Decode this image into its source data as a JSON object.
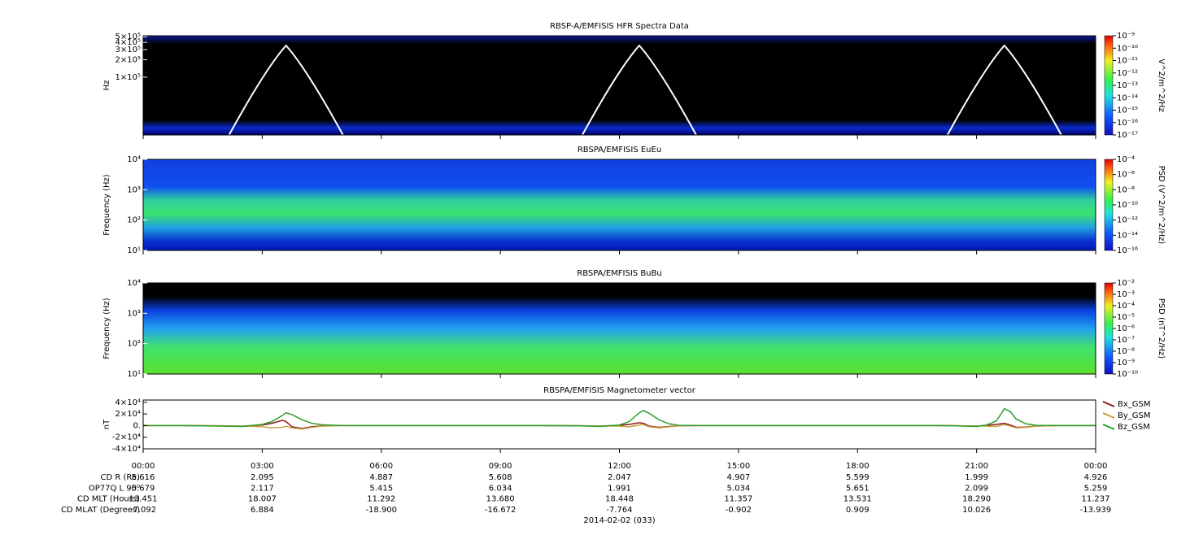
{
  "chart_data": [
    {
      "type": "spectrogram",
      "title": "RBSP-A/EMFISIS  HFR Spectra Data",
      "ylabel": "Hz",
      "ylog": true,
      "ylim": [
        10000,
        520000
      ],
      "yticks": [
        {
          "value": 500000,
          "label": "5×10⁵"
        },
        {
          "value": 400000,
          "label": "4×10⁵"
        },
        {
          "value": 300000,
          "label": "3×10⁵"
        },
        {
          "value": 200000,
          "label": "2×10⁵"
        },
        {
          "value": 100000,
          "label": "1×10⁵"
        }
      ],
      "colorbar": {
        "label": "V^2/m^2/Hz",
        "log": true,
        "lim": [
          1e-17,
          1e-09
        ],
        "ticks": [
          {
            "value": 1e-09,
            "label": "10⁻⁹"
          },
          {
            "value": 1e-10,
            "label": "10⁻¹⁰"
          },
          {
            "value": 1e-11,
            "label": "10⁻¹¹"
          },
          {
            "value": 1e-12,
            "label": "10⁻¹²"
          },
          {
            "value": 1e-13,
            "label": "10⁻¹³"
          },
          {
            "value": 1e-14,
            "label": "10⁻¹⁴"
          },
          {
            "value": 1e-15,
            "label": "10⁻¹⁵"
          },
          {
            "value": 1e-16,
            "label": "10⁻¹⁶"
          },
          {
            "value": 1e-17,
            "label": "10⁻¹⁷"
          }
        ]
      }
    },
    {
      "type": "spectrogram",
      "title": "RBSPA/EMFISIS  EuEu",
      "ylabel": "Frequency (Hz)",
      "ylog": true,
      "ylim": [
        10,
        10000
      ],
      "yticks": [
        {
          "value": 10000,
          "label": "10⁴"
        },
        {
          "value": 1000,
          "label": "10³"
        },
        {
          "value": 100,
          "label": "10²"
        },
        {
          "value": 10,
          "label": "10¹"
        }
      ],
      "colorbar": {
        "label": "PSD (V^2/m^2/Hz)",
        "log": true,
        "lim": [
          1e-16,
          0.0001
        ],
        "ticks": [
          {
            "value": 0.0001,
            "label": "10⁻⁴"
          },
          {
            "value": 1e-06,
            "label": "10⁻⁶"
          },
          {
            "value": 1e-08,
            "label": "10⁻⁸"
          },
          {
            "value": 1e-10,
            "label": "10⁻¹⁰"
          },
          {
            "value": 1e-12,
            "label": "10⁻¹²"
          },
          {
            "value": 1e-14,
            "label": "10⁻¹⁴"
          },
          {
            "value": 1e-16,
            "label": "10⁻¹⁶"
          }
        ]
      }
    },
    {
      "type": "spectrogram",
      "title": "RBSPA/EMFISIS  BuBu",
      "ylabel": "Frequency (Hz)",
      "ylog": true,
      "ylim": [
        10,
        10000
      ],
      "yticks": [
        {
          "value": 10000,
          "label": "10⁴"
        },
        {
          "value": 1000,
          "label": "10³"
        },
        {
          "value": 100,
          "label": "10²"
        },
        {
          "value": 10,
          "label": "10¹"
        }
      ],
      "colorbar": {
        "label": "PSD (nT^2/Hz)",
        "log": true,
        "lim": [
          1e-10,
          0.01
        ],
        "ticks": [
          {
            "value": 0.01,
            "label": "10⁻²"
          },
          {
            "value": 0.001,
            "label": "10⁻³"
          },
          {
            "value": 0.0001,
            "label": "10⁻⁴"
          },
          {
            "value": 1e-05,
            "label": "10⁻⁵"
          },
          {
            "value": 1e-06,
            "label": "10⁻⁶"
          },
          {
            "value": 1e-07,
            "label": "10⁻⁷"
          },
          {
            "value": 1e-08,
            "label": "10⁻⁸"
          },
          {
            "value": 1e-09,
            "label": "10⁻⁹"
          },
          {
            "value": 1e-10,
            "label": "10⁻¹⁰"
          }
        ]
      }
    },
    {
      "type": "line",
      "title": "RBSPA/EMFISIS  Magnetometer vector",
      "ylabel": "nT",
      "xlabel": "2014-02-02 (033)",
      "xlim": [
        0,
        24
      ],
      "ylim": [
        -40000,
        44000
      ],
      "xticks": [
        {
          "value": 0,
          "label": "00:00"
        },
        {
          "value": 3,
          "label": "03:00"
        },
        {
          "value": 6,
          "label": "06:00"
        },
        {
          "value": 9,
          "label": "09:00"
        },
        {
          "value": 12,
          "label": "12:00"
        },
        {
          "value": 15,
          "label": "15:00"
        },
        {
          "value": 18,
          "label": "18:00"
        },
        {
          "value": 21,
          "label": "21:00"
        },
        {
          "value": 24,
          "label": "00:00"
        }
      ],
      "yticks": [
        {
          "value": 40000,
          "label": "4×10⁴"
        },
        {
          "value": 20000,
          "label": "2×10⁴"
        },
        {
          "value": 0,
          "label": "0."
        },
        {
          "value": -20000,
          "label": "-2×10⁴"
        },
        {
          "value": -40000,
          "label": "-4×10⁴"
        }
      ],
      "x": [
        0,
        1,
        2,
        2.5,
        3,
        3.25,
        3.5,
        3.6,
        3.75,
        4,
        4.25,
        4.5,
        5,
        6,
        8,
        10,
        11,
        11.5,
        12,
        12.25,
        12.5,
        12.6,
        12.75,
        13,
        13.25,
        13.5,
        14,
        16,
        18,
        20,
        20.5,
        21,
        21.25,
        21.5,
        21.7,
        21.85,
        22,
        22.25,
        22.5,
        23,
        24
      ],
      "series": [
        {
          "name": "Bx_GSM",
          "color": "#8b1a1a",
          "values": [
            0,
            0,
            -500,
            -1000,
            1000,
            4000,
            9000,
            7000,
            -2000,
            -5000,
            -2000,
            -500,
            0,
            0,
            0,
            0,
            -300,
            -800,
            500,
            2000,
            5000,
            4000,
            -1000,
            -3000,
            -1500,
            -300,
            0,
            0,
            0,
            0,
            -300,
            -1000,
            500,
            2000,
            4000,
            1000,
            -3000,
            -2500,
            -800,
            0,
            0
          ]
        },
        {
          "name": "By_GSM",
          "color": "#c8a040",
          "values": [
            0,
            0,
            -300,
            -800,
            -2000,
            -4000,
            -3000,
            -1000,
            -4000,
            -6000,
            -3000,
            -1000,
            0,
            0,
            0,
            0,
            -200,
            -500,
            -1000,
            -2000,
            1000,
            2000,
            -2000,
            -4000,
            -2000,
            -500,
            0,
            0,
            0,
            0,
            -200,
            -600,
            -1000,
            -1500,
            2000,
            -1000,
            -4000,
            -3000,
            -1000,
            0,
            0
          ]
        },
        {
          "name": "Bz_GSM",
          "color": "#2ca02c",
          "values": [
            0,
            0,
            -1000,
            -1500,
            2000,
            7000,
            17000,
            22000,
            19000,
            10000,
            4000,
            1500,
            0,
            0,
            0,
            0,
            -500,
            -1500,
            1000,
            7000,
            22000,
            26000,
            21000,
            10000,
            3000,
            500,
            0,
            0,
            0,
            0,
            -500,
            -1500,
            1000,
            8000,
            29000,
            24000,
            11000,
            3000,
            500,
            0,
            0
          ]
        }
      ]
    }
  ],
  "ephemeris": {
    "rows": [
      {
        "label": "CD R (Re)",
        "values": [
          "5.616",
          "2.095",
          "4.887",
          "5.608",
          "2.047",
          "4.907",
          "5.599",
          "1.999",
          "4.926"
        ]
      },
      {
        "label": "OP77Q L 90⁰",
        "values": [
          "5.679",
          "2.117",
          "5.415",
          "6.034",
          "1.991",
          "5.034",
          "5.651",
          "2.099",
          "5.259"
        ]
      },
      {
        "label": "CD MLT (Hours)",
        "values": [
          "13.451",
          "18.007",
          "11.292",
          "13.680",
          "18.448",
          "11.357",
          "13.531",
          "18.290",
          "11.237"
        ]
      },
      {
        "label": "CD MLAT (Degrees)",
        "values": [
          "-7.092",
          "6.884",
          "-18.900",
          "-16.672",
          "-7.764",
          "-0.902",
          "0.909",
          "10.026",
          "-13.939"
        ]
      }
    ]
  }
}
